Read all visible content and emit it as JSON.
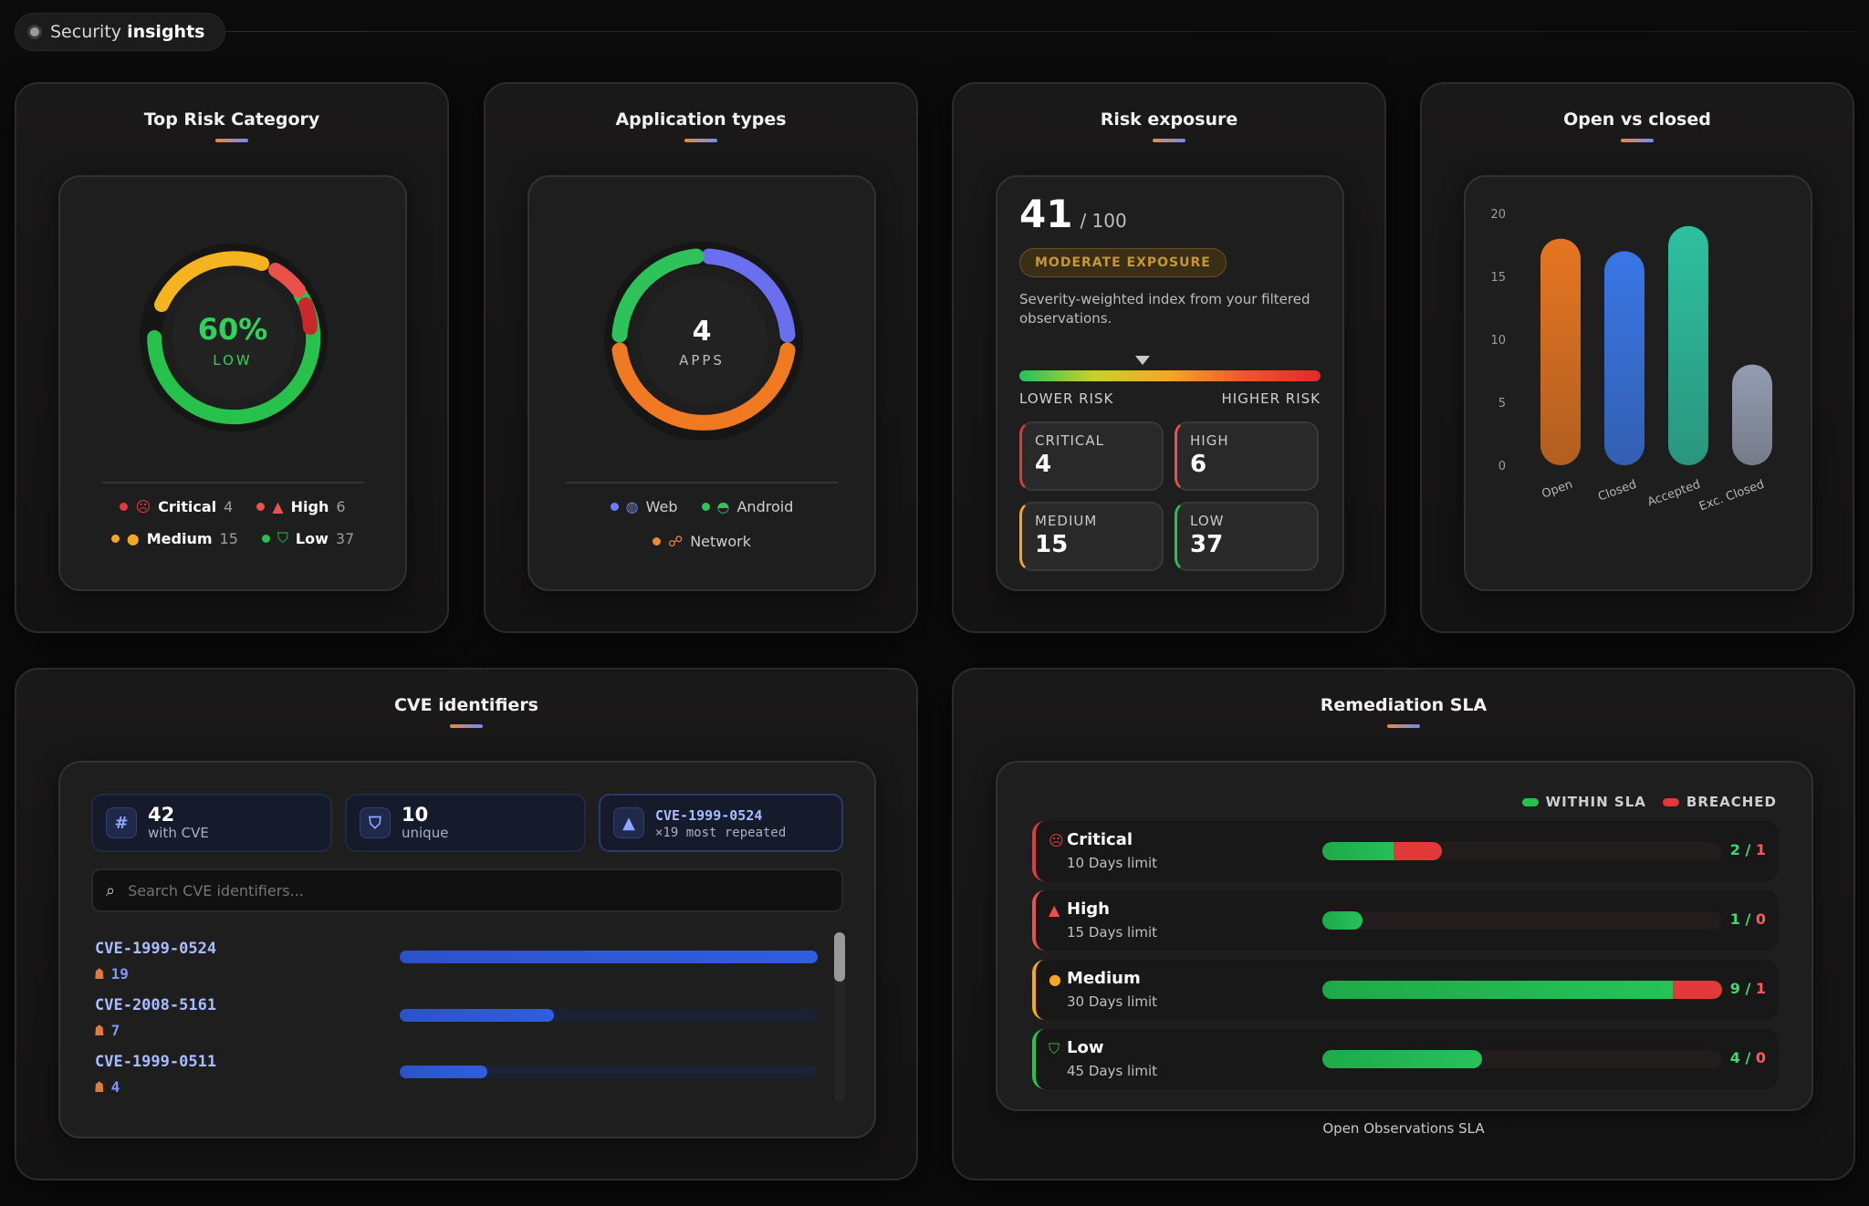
{
  "header": {
    "prefix": "Security",
    "bold": "insights"
  },
  "top_risk": {
    "title": "Top Risk Category",
    "center_value": "60%",
    "center_label": "LOW",
    "legend": [
      {
        "label": "Critical",
        "count": "4",
        "color": "#e03b3b"
      },
      {
        "label": "High",
        "count": "6",
        "color": "#e8524a"
      },
      {
        "label": "Medium",
        "count": "15",
        "color": "#f5a623"
      },
      {
        "label": "Low",
        "count": "37",
        "color": "#27c24c"
      }
    ]
  },
  "app_types": {
    "title": "Application types",
    "center_value": "4",
    "center_label": "APPS",
    "legend": [
      {
        "label": "Web",
        "color": "#6c7cff"
      },
      {
        "label": "Android",
        "color": "#30c35a"
      },
      {
        "label": "Network",
        "color": "#f08a34"
      }
    ]
  },
  "risk_exposure": {
    "title": "Risk exposure",
    "score": "41",
    "max": "/ 100",
    "badge": "MODERATE EXPOSURE",
    "description": "Severity-weighted index from your filtered observations.",
    "scale_low": "LOWER RISK",
    "scale_high": "HIGHER RISK",
    "marker_fraction": 0.41,
    "cards": [
      {
        "label": "CRITICAL",
        "value": "4",
        "color": "#e03b3b"
      },
      {
        "label": "HIGH",
        "value": "6",
        "color": "#e8524a"
      },
      {
        "label": "MEDIUM",
        "value": "15",
        "color": "#f5a623"
      },
      {
        "label": "LOW",
        "value": "37",
        "color": "#27c24c"
      }
    ]
  },
  "open_closed": {
    "title": "Open vs closed"
  },
  "chart_data": {
    "type": "bar",
    "categories": [
      "Open",
      "Closed",
      "Accepted",
      "Exc. Closed"
    ],
    "values": [
      18,
      17,
      19,
      8
    ],
    "ylim": [
      0,
      20
    ],
    "yticks": [
      "0",
      "5",
      "10",
      "15",
      "20"
    ],
    "colors": [
      "#f07a22",
      "#3b7bf0",
      "#2ec9a6",
      "#9aa3b8"
    ]
  },
  "cve": {
    "title": "CVE identifiers",
    "stats": [
      {
        "icon": "#",
        "value": "42",
        "label": "with CVE"
      },
      {
        "icon": "shield",
        "value": "10",
        "label": "unique"
      },
      {
        "icon": "warning",
        "value": "CVE-1999-0524",
        "label": "×19 most repeated"
      }
    ],
    "search_placeholder": "Search CVE identifiers...",
    "items": [
      {
        "id": "CVE-1999-0524",
        "count": "19",
        "fraction": 1.0
      },
      {
        "id": "CVE-2008-5161",
        "count": "7",
        "fraction": 0.37
      },
      {
        "id": "CVE-1999-0511",
        "count": "4",
        "fraction": 0.21
      }
    ]
  },
  "sla": {
    "title": "Remediation SLA",
    "legend_within": "WITHIN SLA",
    "legend_breached": "BREACHED",
    "footer": "Open Observations SLA",
    "rows": [
      {
        "name": "Critical",
        "limit": "10 Days limit",
        "within": "2",
        "breached": "1",
        "color": "#e03b3b",
        "within_frac": 0.2,
        "breach_frac": 0.1
      },
      {
        "name": "High",
        "limit": "15 Days limit",
        "within": "1",
        "breached": "0",
        "color": "#e8524a",
        "within_frac": 0.1,
        "breach_frac": 0
      },
      {
        "name": "Medium",
        "limit": "30 Days limit",
        "within": "9",
        "breached": "1",
        "color": "#f5a623",
        "within_frac": 0.9,
        "breach_frac": 0.1
      },
      {
        "name": "Low",
        "limit": "45 Days limit",
        "within": "4",
        "breached": "0",
        "color": "#27c24c",
        "within_frac": 0.4,
        "breach_frac": 0
      }
    ]
  }
}
